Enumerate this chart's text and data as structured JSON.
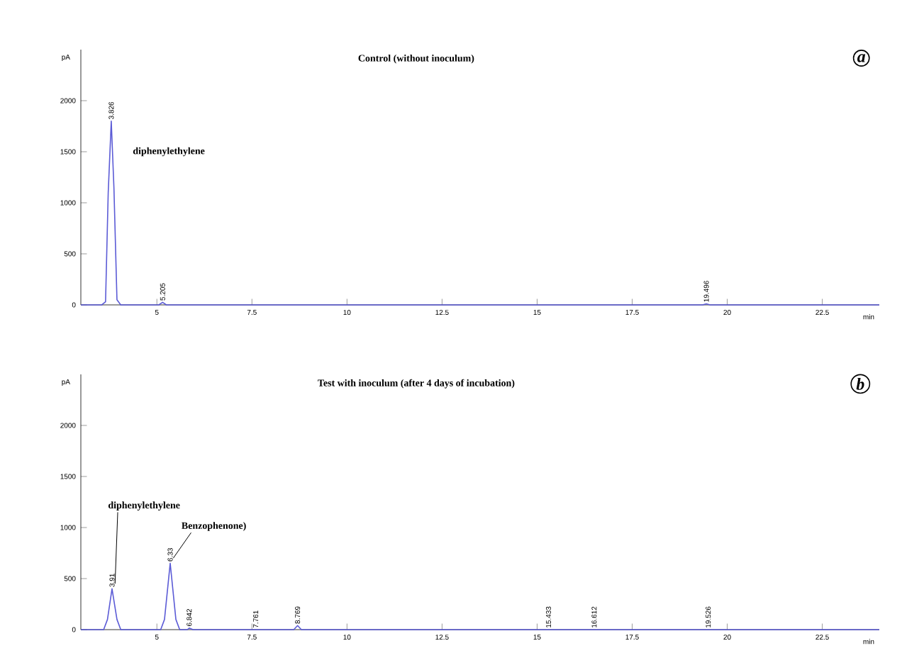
{
  "chart_data": [
    {
      "type": "line",
      "title": "Control (without inoculum)",
      "xlabel": "min",
      "ylabel": "pA",
      "xlim": [
        3,
        24
      ],
      "ylim": [
        0,
        2500
      ],
      "xticks": [
        5,
        7.5,
        10,
        12.5,
        15,
        17.5,
        20,
        22.5
      ],
      "yticks": [
        0,
        500,
        1000,
        1500,
        2000
      ],
      "series": [
        {
          "color": "#5b5bd6",
          "x": [
            3,
            3.55,
            3.65,
            3.72,
            3.8,
            3.87,
            3.95,
            4.05,
            5.05,
            5.15,
            5.25,
            19.35,
            19.45,
            19.55,
            24
          ],
          "values": [
            0,
            0,
            30,
            1100,
            1800,
            1150,
            50,
            0,
            0,
            25,
            0,
            0,
            10,
            0,
            0
          ]
        }
      ],
      "annotations": [
        {
          "text": "3.826",
          "x": 3.8,
          "y": 1800
        },
        {
          "text": "5.205",
          "x": 5.15,
          "y": 25
        },
        {
          "text": "19.496",
          "x": 19.45,
          "y": 10
        },
        "diphenylethylene",
        "a"
      ]
    },
    {
      "type": "line",
      "title": "Test with inoculum (after 4 days of incubation)",
      "xlabel": "min",
      "ylabel": "pA",
      "xlim": [
        3,
        24
      ],
      "ylim": [
        0,
        2500
      ],
      "xticks": [
        5,
        7.5,
        10,
        12.5,
        15,
        17.5,
        20,
        22.5
      ],
      "yticks": [
        0,
        500,
        1000,
        1500,
        2000
      ],
      "series": [
        {
          "color": "#5b5bd6",
          "x": [
            3,
            3.6,
            3.7,
            3.82,
            3.95,
            4.05,
            5.1,
            5.2,
            5.35,
            5.5,
            5.6,
            5.8,
            5.85,
            5.95,
            8.6,
            8.7,
            8.8,
            24
          ],
          "values": [
            0,
            0,
            100,
            400,
            100,
            0,
            0,
            100,
            650,
            100,
            0,
            0,
            15,
            0,
            0,
            40,
            0,
            0
          ]
        }
      ],
      "annotations": [
        {
          "text": "3.91",
          "x": 3.82,
          "y": 400
        },
        {
          "text": "6.33",
          "x": 5.35,
          "y": 650
        },
        {
          "text": "6.842",
          "x": 5.85,
          "y": 15
        },
        {
          "text": "7.761",
          "x": 7.6,
          "y": 0
        },
        {
          "text": "8.769",
          "x": 8.7,
          "y": 40
        },
        {
          "text": "15.433",
          "x": 15.3,
          "y": 0
        },
        {
          "text": "16.612",
          "x": 16.5,
          "y": 0
        },
        {
          "text": "19.526",
          "x": 19.5,
          "y": 0
        },
        {
          "text": "diphenylethylene",
          "x": 3.82,
          "y": 400
        },
        {
          "text": "Benzophenone)",
          "x": 5.35,
          "y": 650
        },
        "b"
      ]
    }
  ]
}
